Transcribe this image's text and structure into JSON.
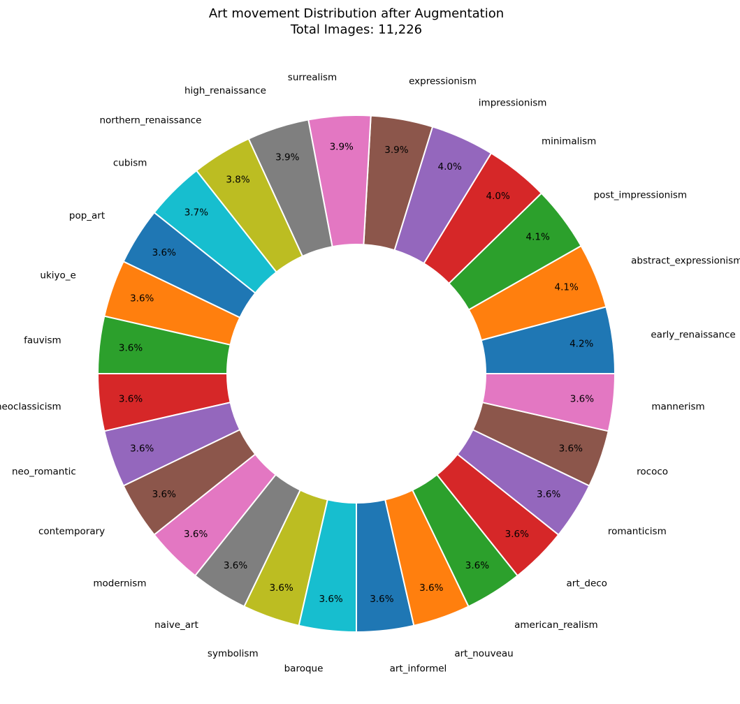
{
  "chart_data": {
    "type": "pie",
    "donut": true,
    "title": "Art movement Distribution after Augmentation",
    "subtitle": "Total Images: 11,226",
    "start_angle_deg": 0,
    "direction": "counterclockwise",
    "legend": "none",
    "slices": [
      {
        "label": "early_renaissance",
        "percent": 4.2,
        "pct_label": "4.2%",
        "color": "#1f77b4"
      },
      {
        "label": "abstract_expressionism",
        "percent": 4.1,
        "pct_label": "4.1%",
        "color": "#ff7f0e"
      },
      {
        "label": "post_impressionism",
        "percent": 4.1,
        "pct_label": "4.1%",
        "color": "#2ca02c"
      },
      {
        "label": "minimalism",
        "percent": 4.0,
        "pct_label": "4.0%",
        "color": "#d62728"
      },
      {
        "label": "impressionism",
        "percent": 4.0,
        "pct_label": "4.0%",
        "color": "#9467bd"
      },
      {
        "label": "expressionism",
        "percent": 3.9,
        "pct_label": "3.9%",
        "color": "#8c564b"
      },
      {
        "label": "surrealism",
        "percent": 3.9,
        "pct_label": "3.9%",
        "color": "#e377c2"
      },
      {
        "label": "high_renaissance",
        "percent": 3.9,
        "pct_label": "3.9%",
        "color": "#7f7f7f"
      },
      {
        "label": "northern_renaissance",
        "percent": 3.8,
        "pct_label": "3.8%",
        "color": "#bcbd22"
      },
      {
        "label": "cubism",
        "percent": 3.7,
        "pct_label": "3.7%",
        "color": "#17becf"
      },
      {
        "label": "pop_art",
        "percent": 3.6,
        "pct_label": "3.6%",
        "color": "#1f77b4"
      },
      {
        "label": "ukiyo_e",
        "percent": 3.6,
        "pct_label": "3.6%",
        "color": "#ff7f0e"
      },
      {
        "label": "fauvism",
        "percent": 3.6,
        "pct_label": "3.6%",
        "color": "#2ca02c"
      },
      {
        "label": "neoclassicism",
        "percent": 3.6,
        "pct_label": "3.6%",
        "color": "#d62728"
      },
      {
        "label": "neo_romantic",
        "percent": 3.6,
        "pct_label": "3.6%",
        "color": "#9467bd"
      },
      {
        "label": "contemporary",
        "percent": 3.6,
        "pct_label": "3.6%",
        "color": "#8c564b"
      },
      {
        "label": "modernism",
        "percent": 3.6,
        "pct_label": "3.6%",
        "color": "#e377c2"
      },
      {
        "label": "naive_art",
        "percent": 3.6,
        "pct_label": "3.6%",
        "color": "#7f7f7f"
      },
      {
        "label": "symbolism",
        "percent": 3.6,
        "pct_label": "3.6%",
        "color": "#bcbd22"
      },
      {
        "label": "baroque",
        "percent": 3.6,
        "pct_label": "3.6%",
        "color": "#17becf"
      },
      {
        "label": "art_informel",
        "percent": 3.6,
        "pct_label": "3.6%",
        "color": "#1f77b4"
      },
      {
        "label": "art_nouveau",
        "percent": 3.6,
        "pct_label": "3.6%",
        "color": "#ff7f0e"
      },
      {
        "label": "american_realism",
        "percent": 3.6,
        "pct_label": "3.6%",
        "color": "#2ca02c"
      },
      {
        "label": "art_deco",
        "percent": 3.6,
        "pct_label": "3.6%",
        "color": "#d62728"
      },
      {
        "label": "romanticism",
        "percent": 3.6,
        "pct_label": "3.6%",
        "color": "#9467bd"
      },
      {
        "label": "rococo",
        "percent": 3.6,
        "pct_label": "3.6%",
        "color": "#8c564b"
      },
      {
        "label": "mannerism",
        "percent": 3.6,
        "pct_label": "3.6%",
        "color": "#e377c2"
      }
    ]
  }
}
